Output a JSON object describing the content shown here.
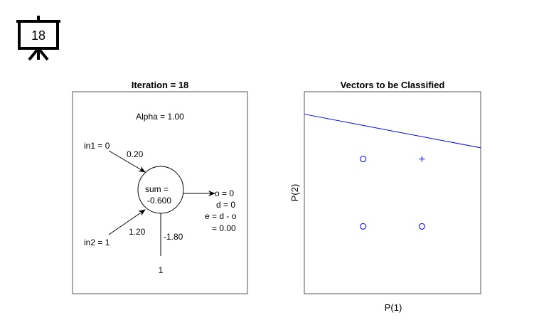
{
  "badge": {
    "number": "18"
  },
  "left_panel": {
    "title": "Iteration = 18",
    "alpha": "Alpha = 1.00",
    "in1": "in1 = 0",
    "w1": "0.20",
    "in2": "in2 = 1",
    "w2": "1.20",
    "bias_weight": "-1.80",
    "bias_input": "1",
    "sum_line1": "sum =",
    "sum_line2": "-0.600",
    "out_o": "o = 0",
    "out_d": "d = 0",
    "out_e": "e = d - o",
    "out_e_val": "= 0.00"
  },
  "right_panel": {
    "title": "Vectors to be Classified",
    "xlabel": "P(1)",
    "ylabel": "P(2)"
  },
  "chart_data": {
    "type": "scatter",
    "title": "Vectors to be Classified",
    "xlabel": "P(1)",
    "ylabel": "P(2)",
    "xlim": [
      -1,
      2
    ],
    "ylim": [
      -1,
      2
    ],
    "grid": false,
    "series": [
      {
        "marker": "circle",
        "points": [
          [
            0,
            0
          ],
          [
            0,
            1
          ],
          [
            1,
            0
          ]
        ]
      },
      {
        "marker": "plus",
        "points": [
          [
            1,
            1
          ]
        ]
      }
    ],
    "decision_boundary": {
      "w": [
        0.2,
        1.2
      ],
      "b": -1.8,
      "color": "#0000ff"
    },
    "marker_color": "#0000ff"
  }
}
